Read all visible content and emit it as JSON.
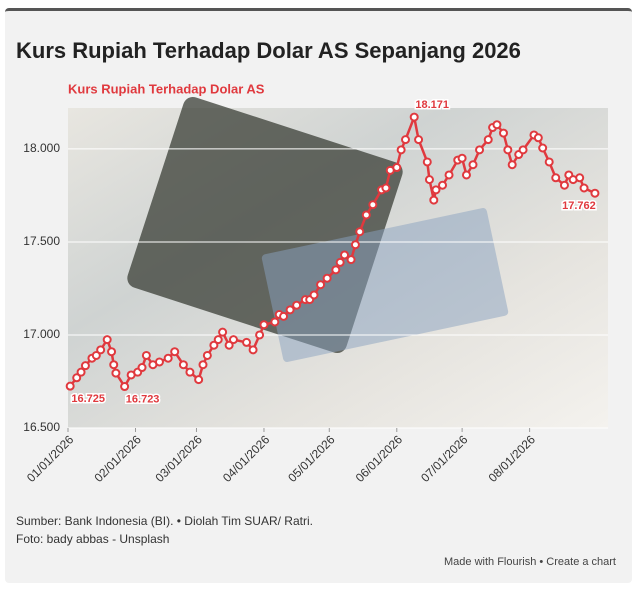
{
  "chart_data": {
    "type": "line",
    "title": "Kurs Rupiah Terhadap Dolar AS Sepanjang 2026",
    "subtitle": "Kurs Rupiah Terhadap Dolar AS",
    "x": [
      "2026-01-02",
      "2026-01-05",
      "2026-01-07",
      "2026-01-09",
      "2026-01-12",
      "2026-01-14",
      "2026-01-16",
      "2026-01-19",
      "2026-01-21",
      "2026-01-22",
      "2026-01-23",
      "2026-01-27",
      "2026-01-30",
      "2026-02-02",
      "2026-02-04",
      "2026-02-06",
      "2026-02-09",
      "2026-02-12",
      "2026-02-16",
      "2026-02-19",
      "2026-02-23",
      "2026-02-26",
      "2026-03-02",
      "2026-03-04",
      "2026-03-06",
      "2026-03-09",
      "2026-03-11",
      "2026-03-13",
      "2026-03-16",
      "2026-03-18",
      "2026-03-24",
      "2026-03-27",
      "2026-03-30",
      "2026-04-01",
      "2026-04-06",
      "2026-04-08",
      "2026-04-10",
      "2026-04-13",
      "2026-04-16",
      "2026-04-20",
      "2026-04-22",
      "2026-04-24",
      "2026-04-27",
      "2026-04-30",
      "2026-05-04",
      "2026-05-06",
      "2026-05-08",
      "2026-05-11",
      "2026-05-13",
      "2026-05-15",
      "2026-05-18",
      "2026-05-21",
      "2026-05-25",
      "2026-05-27",
      "2026-05-29",
      "2026-06-01",
      "2026-06-03",
      "2026-06-05",
      "2026-06-09",
      "2026-06-11",
      "2026-06-15",
      "2026-06-16",
      "2026-06-18",
      "2026-06-19",
      "2026-06-22",
      "2026-06-25",
      "2026-06-29",
      "2026-07-01",
      "2026-07-03",
      "2026-07-06",
      "2026-07-09",
      "2026-07-13",
      "2026-07-15",
      "2026-07-17",
      "2026-07-20",
      "2026-07-22",
      "2026-07-24",
      "2026-07-27",
      "2026-07-29",
      "2026-08-03",
      "2026-08-05",
      "2026-08-07",
      "2026-08-10",
      "2026-08-13",
      "2026-08-17",
      "2026-08-19",
      "2026-08-21",
      "2026-08-24",
      "2026-08-26",
      "2026-08-31"
    ],
    "series": [
      {
        "name": "Kurs Rupiah Terhadap Dolar AS",
        "color": "#e0393e",
        "values": [
          16725,
          16770,
          16800,
          16835,
          16875,
          16890,
          16920,
          16975,
          16910,
          16840,
          16795,
          16723,
          16785,
          16800,
          16825,
          16890,
          16840,
          16855,
          16875,
          16910,
          16840,
          16800,
          16760,
          16840,
          16890,
          16945,
          16975,
          17015,
          16945,
          16975,
          16960,
          16920,
          17000,
          17055,
          17070,
          17110,
          17100,
          17135,
          17160,
          17190,
          17190,
          17215,
          17270,
          17305,
          17350,
          17390,
          17430,
          17405,
          17485,
          17555,
          17645,
          17700,
          17780,
          17790,
          17885,
          17900,
          17995,
          18050,
          18171,
          18050,
          17930,
          17835,
          17725,
          17780,
          17805,
          17860,
          17940,
          17950,
          17860,
          17915,
          17995,
          18050,
          18115,
          18130,
          18085,
          17995,
          17915,
          17970,
          17995,
          18075,
          18060,
          18005,
          17930,
          17845,
          17805,
          17860,
          17835,
          17845,
          17790,
          17762
        ],
        "value_labels": [
          "16.725",
          null,
          null,
          null,
          null,
          null,
          null,
          null,
          null,
          null,
          null,
          "16.723",
          null,
          null,
          null,
          null,
          null,
          null,
          null,
          null,
          null,
          null,
          null,
          null,
          null,
          null,
          null,
          null,
          null,
          null,
          null,
          null,
          null,
          null,
          null,
          null,
          null,
          null,
          null,
          null,
          null,
          null,
          null,
          null,
          null,
          null,
          null,
          null,
          null,
          null,
          null,
          null,
          null,
          null,
          null,
          null,
          null,
          null,
          "18.171",
          null,
          null,
          null,
          null,
          null,
          null,
          null,
          null,
          null,
          null,
          null,
          null,
          null,
          null,
          null,
          null,
          null,
          null,
          null,
          null,
          null,
          null,
          null,
          null,
          null,
          null,
          null,
          null,
          null,
          null,
          "17.762"
        ]
      }
    ],
    "xlim": [
      "2026-01-01",
      "2026-09-06"
    ],
    "xticks": [
      {
        "value": "2026-01-01",
        "label": "01/01/2026"
      },
      {
        "value": "2026-02-01",
        "label": "02/01/2026"
      },
      {
        "value": "2026-03-01",
        "label": "03/01/2026"
      },
      {
        "value": "2026-04-01",
        "label": "04/01/2026"
      },
      {
        "value": "2026-05-01",
        "label": "05/01/2026"
      },
      {
        "value": "2026-06-01",
        "label": "06/01/2026"
      },
      {
        "value": "2026-07-01",
        "label": "07/01/2026"
      },
      {
        "value": "2026-08-01",
        "label": "08/01/2026"
      }
    ],
    "ylim": [
      16500,
      18220
    ],
    "yticks": [
      {
        "value": 16500,
        "label": "16.500"
      },
      {
        "value": 17000,
        "label": "17.000"
      },
      {
        "value": 17500,
        "label": "17.500"
      },
      {
        "value": 18000,
        "label": "18.000"
      }
    ],
    "grid": true,
    "source": "Sumber: Bank Indonesia (BI). • Diolah Tim SUAR/ Ratri.",
    "credit": "Foto: bady abbas - Unsplash",
    "footer": "Made with Flourish • Create a chart"
  }
}
